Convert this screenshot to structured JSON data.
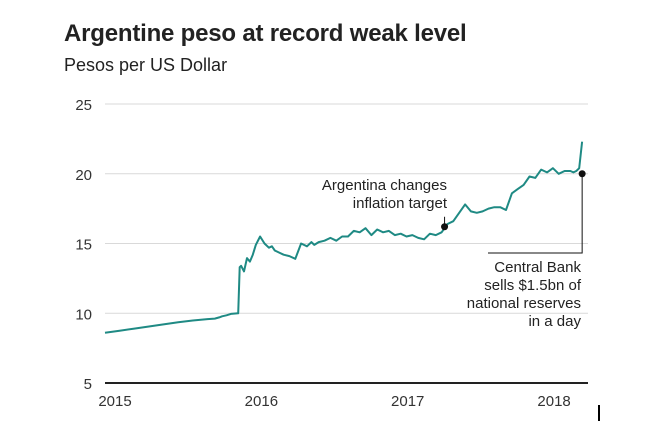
{
  "chart_data": {
    "type": "line",
    "title": "Argentine peso at record weak level",
    "subtitle": "Pesos per US Dollar",
    "xlabel": "",
    "ylabel": "",
    "ylim": [
      5,
      25
    ],
    "yticks": [
      5,
      10,
      15,
      20,
      25
    ],
    "xlim": [
      2015.0,
      2018.3
    ],
    "xticks": [
      2015,
      2016,
      2017,
      2018
    ],
    "grid": true,
    "line_color": "#1f8a84",
    "series": [
      {
        "x": [
          2015.0,
          2015.1,
          2015.2,
          2015.3,
          2015.4,
          2015.5,
          2015.6,
          2015.7,
          2015.75,
          2015.78,
          2015.8,
          2015.83,
          2015.86,
          2015.89,
          2015.91,
          2015.92,
          2015.93,
          2015.95,
          2015.97,
          2015.99,
          2016.01,
          2016.03,
          2016.06,
          2016.09,
          2016.12,
          2016.14,
          2016.16,
          2016.19,
          2016.22,
          2016.26,
          2016.3,
          2016.34,
          2016.38,
          2016.41,
          2016.43,
          2016.46,
          2016.5,
          2016.54,
          2016.58,
          2016.62,
          2016.66,
          2016.7,
          2016.74,
          2016.78,
          2016.82,
          2016.86,
          2016.9,
          2016.94,
          2016.98,
          2017.02,
          2017.06,
          2017.1,
          2017.14,
          2017.18,
          2017.22,
          2017.26,
          2017.3,
          2017.34,
          2017.38,
          2017.42,
          2017.46,
          2017.5,
          2017.54,
          2017.58,
          2017.62,
          2017.66,
          2017.7,
          2017.74,
          2017.78,
          2017.82,
          2017.86,
          2017.9,
          2017.94,
          2017.98,
          2018.02,
          2018.06,
          2018.1,
          2018.14,
          2018.18,
          2018.2,
          2018.22,
          2018.24,
          2018.26
        ],
        "values": [
          8.6,
          8.75,
          8.9,
          9.05,
          9.2,
          9.35,
          9.48,
          9.58,
          9.62,
          9.7,
          9.78,
          9.85,
          9.95,
          9.98,
          10.0,
          13.3,
          13.4,
          13.0,
          13.95,
          13.7,
          14.2,
          14.9,
          15.5,
          15.0,
          14.7,
          14.8,
          14.5,
          14.35,
          14.2,
          14.1,
          13.9,
          15.0,
          14.8,
          15.1,
          14.9,
          15.1,
          15.2,
          15.4,
          15.2,
          15.5,
          15.5,
          15.9,
          15.8,
          16.1,
          15.6,
          16.0,
          15.8,
          15.9,
          15.6,
          15.7,
          15.5,
          15.6,
          15.4,
          15.3,
          15.7,
          15.6,
          15.8,
          16.4,
          16.6,
          17.2,
          17.8,
          17.3,
          17.2,
          17.3,
          17.5,
          17.6,
          17.6,
          17.4,
          18.6,
          18.9,
          19.2,
          19.8,
          19.7,
          20.3,
          20.1,
          20.4,
          20.0,
          20.2,
          20.2,
          20.1,
          20.2,
          20.4,
          22.3
        ]
      }
    ],
    "annotations": [
      {
        "text_lines": [
          "Argentina changes",
          "inflation target"
        ],
        "x": 2017.32,
        "y": 16.2
      },
      {
        "text_lines": [
          "Central Bank",
          "sells $1.5bn of",
          "national reserves",
          "in a day"
        ],
        "x": 2018.26,
        "y": 20.0
      }
    ]
  }
}
